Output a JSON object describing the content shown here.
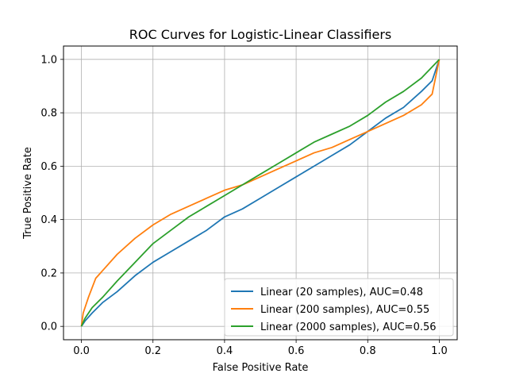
{
  "chart_data": {
    "type": "line",
    "title": "ROC Curves for Logistic-Linear Classifiers",
    "xlabel": "False Positive Rate",
    "ylabel": "True Positive Rate",
    "xlim": [
      -0.05,
      1.05
    ],
    "ylim": [
      -0.05,
      1.05
    ],
    "x_ticks": [
      0.0,
      0.2,
      0.4,
      0.6,
      0.8,
      1.0
    ],
    "y_ticks": [
      0.0,
      0.2,
      0.4,
      0.6,
      0.8,
      1.0
    ],
    "x_tick_labels": [
      "0.0",
      "0.2",
      "0.4",
      "0.6",
      "0.8",
      "1.0"
    ],
    "y_tick_labels": [
      "0.0",
      "0.2",
      "0.4",
      "0.6",
      "0.8",
      "1.0"
    ],
    "grid": true,
    "legend_position": "lower-right",
    "series": [
      {
        "name": "Linear (20 samples), AUC=0.48",
        "color": "#1f77b4",
        "x": [
          0.0,
          0.01,
          0.03,
          0.06,
          0.1,
          0.15,
          0.2,
          0.25,
          0.3,
          0.35,
          0.4,
          0.45,
          0.5,
          0.55,
          0.6,
          0.65,
          0.7,
          0.75,
          0.8,
          0.85,
          0.9,
          0.95,
          0.98,
          1.0
        ],
        "y": [
          0.0,
          0.02,
          0.05,
          0.09,
          0.13,
          0.19,
          0.24,
          0.28,
          0.32,
          0.36,
          0.41,
          0.44,
          0.48,
          0.52,
          0.56,
          0.6,
          0.64,
          0.68,
          0.73,
          0.78,
          0.82,
          0.88,
          0.92,
          1.0
        ]
      },
      {
        "name": "Linear (200 samples), AUC=0.55",
        "color": "#ff7f0e",
        "x": [
          0.0,
          0.005,
          0.02,
          0.04,
          0.06,
          0.1,
          0.15,
          0.2,
          0.25,
          0.3,
          0.35,
          0.4,
          0.45,
          0.5,
          0.55,
          0.6,
          0.65,
          0.7,
          0.75,
          0.8,
          0.85,
          0.9,
          0.95,
          0.98,
          1.0
        ],
        "y": [
          0.0,
          0.05,
          0.11,
          0.18,
          0.21,
          0.27,
          0.33,
          0.38,
          0.42,
          0.45,
          0.48,
          0.51,
          0.53,
          0.56,
          0.59,
          0.62,
          0.65,
          0.67,
          0.7,
          0.73,
          0.76,
          0.79,
          0.83,
          0.87,
          1.0
        ]
      },
      {
        "name": "Linear (2000 samples), AUC=0.56",
        "color": "#2ca02c",
        "x": [
          0.0,
          0.01,
          0.03,
          0.06,
          0.1,
          0.15,
          0.2,
          0.25,
          0.3,
          0.35,
          0.4,
          0.45,
          0.5,
          0.55,
          0.6,
          0.65,
          0.7,
          0.75,
          0.8,
          0.85,
          0.9,
          0.95,
          1.0
        ],
        "y": [
          0.0,
          0.03,
          0.07,
          0.11,
          0.17,
          0.24,
          0.31,
          0.36,
          0.41,
          0.45,
          0.49,
          0.53,
          0.57,
          0.61,
          0.65,
          0.69,
          0.72,
          0.75,
          0.79,
          0.84,
          0.88,
          0.93,
          1.0
        ]
      }
    ]
  }
}
